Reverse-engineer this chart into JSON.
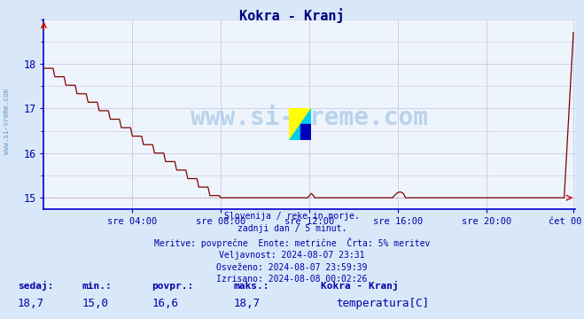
{
  "title": "Kokra - Kranj",
  "title_color": "#000080",
  "bg_color": "#d8e8f8",
  "plot_bg_color": "#eef4fb",
  "grid_color_major": "#c8c8e8",
  "line_color": "#800000",
  "axis_color": "#0000cc",
  "text_color": "#0000aa",
  "yticks": [
    15,
    16,
    17,
    18
  ],
  "ymin": 14.75,
  "ymax": 19.0,
  "xmin": 0,
  "xmax": 288,
  "xtick_positions": [
    48,
    96,
    144,
    192,
    240,
    287
  ],
  "xtick_labels": [
    "sre 04:00",
    "sre 08:00",
    "sre 12:00",
    "sre 16:00",
    "sre 20:00",
    "čet 00:00"
  ],
  "watermark": "www.si-vreme.com",
  "info_lines": [
    "Slovenija / reke in morje.",
    "zadnji dan / 5 minut.",
    "Meritve: povprečne  Enote: metrične  Črta: 5% meritev",
    "Veljavnost: 2024-08-07 23:31",
    "Osveženo: 2024-08-07 23:59:39",
    "Izrisano: 2024-08-08 00:02:26"
  ],
  "legend_labels": [
    "sedaj:",
    "min.:",
    "povpr.:",
    "maks.:",
    "Kokra - Kranj"
  ],
  "legend_values": [
    "18,7",
    "15,0",
    "16,6",
    "18,7"
  ],
  "legend_series": "temperatura[C]",
  "legend_color": "#cc0000",
  "n_points": 288
}
